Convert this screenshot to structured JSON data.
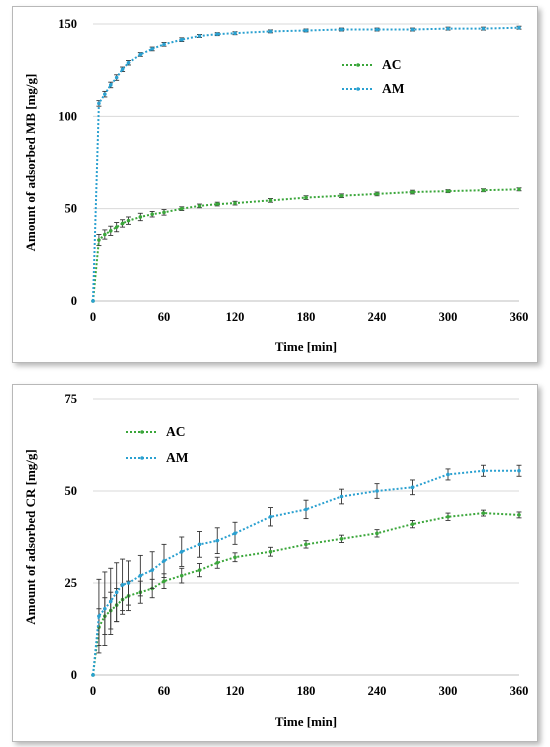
{
  "chart_data": [
    {
      "type": "line",
      "xlabel": "Time [min]",
      "ylabel": "Amount of adsorbed MB [mg/g]",
      "xlim": [
        0,
        360
      ],
      "ylim": [
        0,
        150
      ],
      "xticks": [
        "0",
        "60",
        "120",
        "180",
        "240",
        "300",
        "360"
      ],
      "yticks": [
        "0",
        "50",
        "100",
        "150"
      ],
      "grid": "horizontal",
      "legend": "right",
      "series": [
        {
          "name": "AC",
          "color": "#3aa63a",
          "x": [
            0,
            5,
            10,
            15,
            20,
            25,
            30,
            40,
            50,
            60,
            75,
            90,
            105,
            120,
            150,
            180,
            210,
            240,
            270,
            300,
            330,
            360
          ],
          "y": [
            0,
            33,
            36,
            38,
            40,
            42,
            43.5,
            45.5,
            47,
            48,
            50,
            51.5,
            52.5,
            53,
            54.5,
            56,
            57,
            58,
            59,
            59.5,
            60,
            60.5
          ],
          "err": [
            0,
            3,
            2.5,
            2.5,
            2.5,
            2,
            2,
            2,
            1.5,
            1.5,
            1,
            1,
            1,
            1,
            1,
            1,
            1,
            1,
            1,
            0.8,
            0.8,
            0.8
          ]
        },
        {
          "name": "AM",
          "color": "#2aa0d0",
          "x": [
            0,
            5,
            10,
            15,
            20,
            25,
            30,
            40,
            50,
            60,
            75,
            90,
            105,
            120,
            150,
            180,
            210,
            240,
            270,
            300,
            330,
            360
          ],
          "y": [
            0,
            107,
            112,
            117,
            121,
            125.5,
            129,
            133.5,
            136.5,
            139,
            141.5,
            143.5,
            144.5,
            145,
            146,
            146.5,
            147,
            147,
            147,
            147.5,
            147.5,
            148
          ],
          "err": [
            0,
            1.5,
            1.5,
            1.5,
            1.5,
            1.2,
            1.2,
            1,
            1,
            1,
            1,
            0.8,
            0.8,
            0.8,
            0.8,
            0.8,
            0.8,
            0.8,
            0.8,
            0.8,
            0.8,
            0.8
          ]
        }
      ]
    },
    {
      "type": "line",
      "xlabel": "Time [min]",
      "ylabel": "Amount of adsorbed CR [mg/g]",
      "xlim": [
        0,
        360
      ],
      "ylim": [
        0,
        75
      ],
      "xticks": [
        "0",
        "60",
        "120",
        "180",
        "240",
        "300",
        "360"
      ],
      "yticks": [
        "0",
        "25",
        "50",
        "75"
      ],
      "grid": "horizontal",
      "legend": "top-left",
      "series": [
        {
          "name": "AC",
          "color": "#3aa63a",
          "x": [
            0,
            5,
            10,
            15,
            20,
            25,
            30,
            40,
            50,
            60,
            75,
            90,
            105,
            120,
            150,
            180,
            210,
            240,
            270,
            300,
            330,
            360
          ],
          "y": [
            0,
            13,
            16,
            17.5,
            19,
            20.5,
            21.5,
            22.5,
            23.5,
            25.5,
            27,
            28.5,
            30.5,
            32,
            33.5,
            35.5,
            37,
            38.5,
            41,
            43,
            44,
            43.5
          ],
          "err": [
            0,
            5,
            5,
            5,
            4.5,
            4,
            4,
            3,
            2.5,
            2,
            2,
            1.8,
            1.5,
            1.2,
            1.2,
            1,
            1,
            1,
            1,
            1,
            0.8,
            0.8
          ]
        },
        {
          "name": "AM",
          "color": "#2aa0d0",
          "x": [
            0,
            5,
            10,
            15,
            20,
            25,
            30,
            40,
            50,
            60,
            75,
            90,
            105,
            120,
            150,
            180,
            210,
            240,
            270,
            300,
            330,
            360
          ],
          "y": [
            0,
            16,
            18,
            20,
            22.5,
            24.5,
            25,
            27,
            28.5,
            31,
            33.5,
            35.5,
            36.5,
            38.5,
            43,
            45,
            48.5,
            50,
            51,
            54.5,
            55.5,
            55.5
          ],
          "err": [
            0,
            10,
            10,
            9,
            8,
            7,
            6,
            5.5,
            5,
            4.5,
            4,
            3.5,
            3.5,
            3,
            2.5,
            2.5,
            2,
            2,
            2,
            1.5,
            1.5,
            1.5
          ]
        }
      ]
    }
  ]
}
